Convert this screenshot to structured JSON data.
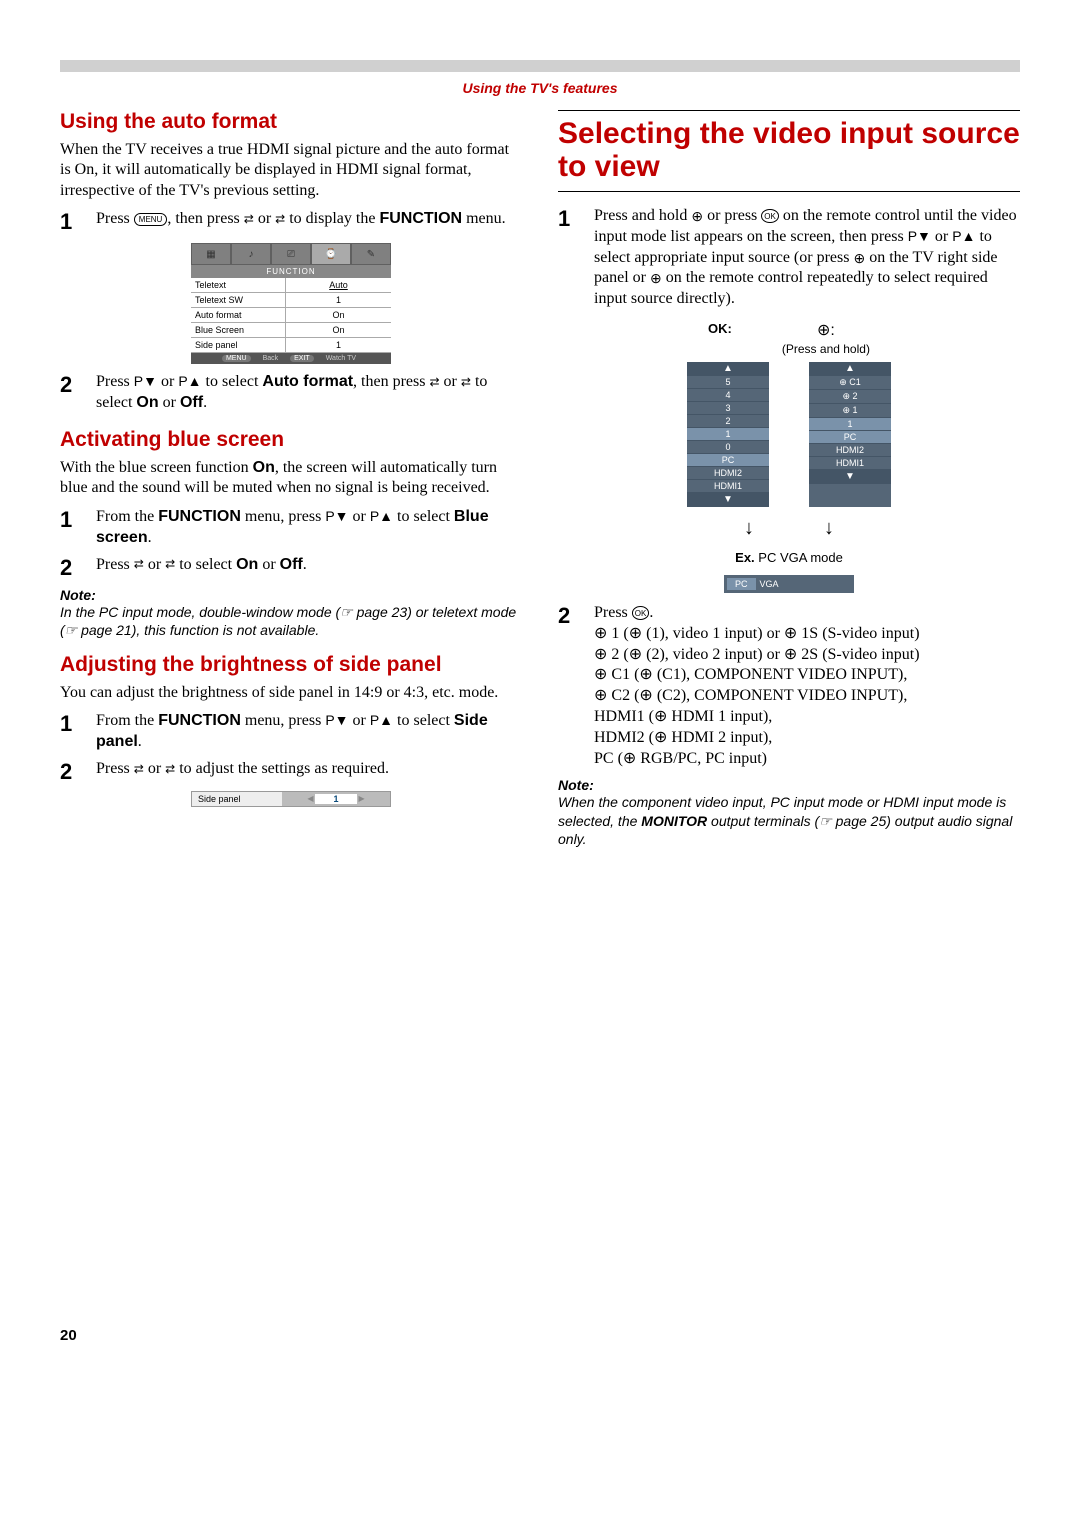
{
  "header": {
    "title": "Using the TV's features"
  },
  "left": {
    "sec1": {
      "heading": "Using the auto format",
      "intro": "When the TV receives a true HDMI signal picture and the auto format is On, it will automatically be displayed in HDMI signal format, irrespective of the TV's previous setting.",
      "step1a": "Press ",
      "step1b": ", then press ",
      "step1c": " or ",
      "step1d": " to display the ",
      "step1bold": "FUNCTION",
      "step1e": " menu.",
      "step2a": "Press ",
      "step2pv1": "P▼",
      "step2b": " or ",
      "step2pv2": "P▲",
      "step2c": " to select ",
      "step2bold": "Auto format",
      "step2d": ", then press ",
      "step2e": " or ",
      "step2f": " to select ",
      "step2on": "On",
      "step2g": " or ",
      "step2off": "Off",
      "step2h": "."
    },
    "func_menu": {
      "title": "FUNCTION",
      "rows": [
        {
          "label": "Teletext",
          "value": "Auto"
        },
        {
          "label": "Teletext SW",
          "value": "1"
        },
        {
          "label": "Auto format",
          "value": "On"
        },
        {
          "label": "Blue Screen",
          "value": "On"
        },
        {
          "label": "Side panel",
          "value": "1"
        }
      ],
      "hints": {
        "menu": "MENU",
        "back": "Back",
        "exit": "EXIT",
        "watch": "Watch TV"
      }
    },
    "sec2": {
      "heading": "Activating blue screen",
      "intro_a": "With the blue screen function ",
      "intro_on": "On",
      "intro_b": ", the screen will automatically turn blue and the sound will be muted when no signal is being received.",
      "step1a": "From the ",
      "step1bold1": "FUNCTION",
      "step1b": " menu, press ",
      "step1pv1": "P▼",
      "step1c": " or ",
      "step1pv2": "P▲",
      "step1d": " to select ",
      "step1bold2": "Blue screen",
      "step1e": ".",
      "step2a": "Press ",
      "step2b": " or ",
      "step2c": " to select ",
      "step2on": "On",
      "step2d": " or ",
      "step2off": "Off",
      "step2e": ".",
      "note_label": "Note:",
      "note_body": "In the PC input mode, double-window mode (☞ page 23) or teletext mode (☞ page 21), this function is not available."
    },
    "sec3": {
      "heading": "Adjusting the brightness of side panel",
      "intro": "You can adjust the brightness of side panel in 14:9 or 4:3, etc. mode.",
      "step1a": "From the ",
      "step1bold1": "FUNCTION",
      "step1b": " menu, press ",
      "step1pv1": "P▼",
      "step1c": " or ",
      "step1pv2": "P▲",
      "step1d": " to select ",
      "step1bold2": "Side panel",
      "step1e": ".",
      "step2a": "Press ",
      "step2b": " or ",
      "step2c": " to adjust the settings as required.",
      "side_label": "Side panel",
      "side_value": "1"
    }
  },
  "right": {
    "heading": "Selecting the video input source to view",
    "step1a": "Press and hold ",
    "step1b": " or press ",
    "step1c": " on the remote control until the video input mode list appears on the screen, then press ",
    "step1pv1": "P▼",
    "step1d": " or ",
    "step1pv2": "P▲",
    "step1e": " to select appropriate input source (or press ",
    "step1f": " on the TV right side panel or ",
    "step1g": " on the remote control repeatedly to select required input source directly).",
    "diagram": {
      "ok": "OK:",
      "input_label": "⊕:",
      "press_hold": "(Press and hold)",
      "list1": [
        "▲",
        "5",
        "4",
        "3",
        "2",
        "1",
        "0",
        "PC",
        "HDMI2",
        "HDMI1",
        "▼"
      ],
      "list2": [
        "▲",
        "⊕ C1",
        "⊕ 2",
        "⊕ 1",
        "1",
        "PC",
        "HDMI2",
        "HDMI1",
        "▼"
      ],
      "ex": "Ex.",
      "ex_text": "PC VGA mode",
      "pcvga_a": "PC",
      "pcvga_b": "VGA"
    },
    "step2a": "Press ",
    "step2b": ".",
    "inputs": [
      "⊕ 1 (⊕ (1), video 1 input) or ⊕ 1S (S-video input)",
      "⊕ 2 (⊕ (2), video 2 input) or ⊕ 2S (S-video input)",
      "⊕ C1 (⊕ (C1), COMPONENT VIDEO INPUT),",
      "⊕ C2 (⊕ (C2), COMPONENT VIDEO INPUT),",
      "HDMI1 (⊕ HDMI 1 input),",
      "HDMI2 (⊕ HDMI 2 input),",
      "PC (⊕ RGB/PC, PC input)"
    ],
    "note_label": "Note:",
    "note_body_a": "When the component video input, PC input mode or HDMI input mode is selected, the ",
    "note_bold": "MONITOR",
    "note_body_b": " output terminals (☞ page 25) output audio signal only."
  },
  "page_number": "20",
  "glyph": {
    "arrow_lr": "⇄",
    "pv_down": "P▼",
    "pv_up": "P▲",
    "menu": "MENU",
    "ok": "OK",
    "input": "⊕"
  }
}
